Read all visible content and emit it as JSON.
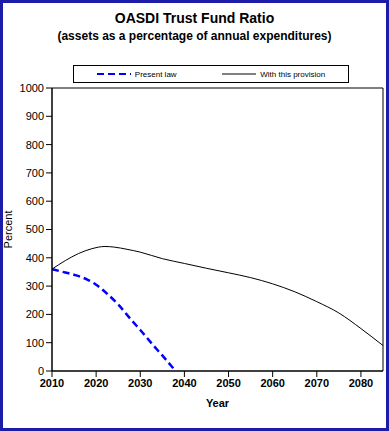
{
  "chart_data": {
    "type": "line",
    "title": "OASDI Trust Fund Ratio",
    "subtitle": "(assets as a percentage of annual expenditures)",
    "x_label": "Year",
    "y_label": "Percent",
    "xlim": [
      2010,
      2085
    ],
    "xticks": [
      2010,
      2020,
      2030,
      2040,
      2050,
      2060,
      2070,
      2080
    ],
    "ylim": [
      0,
      1000
    ],
    "yticks": [
      0,
      100,
      200,
      300,
      400,
      500,
      600,
      700,
      800,
      900,
      1000
    ],
    "grid": false,
    "legend": "top",
    "series": [
      {
        "name": "Present law",
        "color": "#0000ff",
        "line_style": "dashed",
        "marker": "none",
        "x": [
          2010,
          2012,
          2015,
          2018,
          2020,
          2022,
          2025,
          2028,
          2030,
          2033,
          2035,
          2038
        ],
        "values": [
          360,
          352,
          340,
          323,
          305,
          280,
          235,
          180,
          145,
          90,
          55,
          0
        ]
      },
      {
        "name": "With this provision",
        "color": "#000000",
        "line_style": "solid",
        "marker": "none",
        "x": [
          2010,
          2013,
          2016,
          2019,
          2022,
          2024,
          2027,
          2030,
          2035,
          2040,
          2045,
          2050,
          2055,
          2060,
          2065,
          2070,
          2075,
          2080,
          2085
        ],
        "values": [
          360,
          390,
          415,
          432,
          440,
          438,
          430,
          420,
          397,
          380,
          363,
          347,
          330,
          308,
          280,
          245,
          205,
          150,
          90
        ]
      }
    ]
  }
}
